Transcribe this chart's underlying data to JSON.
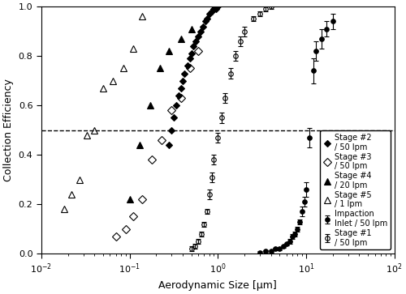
{
  "xlabel": "Aerodynamic Size [μm]",
  "ylabel": "Collection Efficiency",
  "xlim": [
    0.01,
    100
  ],
  "ylim": [
    0.0,
    1.0
  ],
  "dashed_line_y": 0.5,
  "impaction": {
    "label": "Impaction\nInlet / 50 lpm",
    "marker": "o",
    "fillstyle": "full",
    "x": [
      3.0,
      3.5,
      4.0,
      4.5,
      5.0,
      5.5,
      6.0,
      6.5,
      7.0,
      7.5,
      8.0,
      8.5,
      9.0,
      9.5,
      10.0,
      11.0,
      12.0,
      13.0,
      15.0,
      17.0,
      20.0
    ],
    "y": [
      0.005,
      0.01,
      0.01,
      0.02,
      0.02,
      0.03,
      0.04,
      0.05,
      0.07,
      0.08,
      0.1,
      0.13,
      0.17,
      0.21,
      0.26,
      0.47,
      0.74,
      0.82,
      0.87,
      0.91,
      0.94
    ],
    "yerr": [
      0.005,
      0.005,
      0.005,
      0.005,
      0.005,
      0.005,
      0.005,
      0.01,
      0.01,
      0.01,
      0.01,
      0.01,
      0.02,
      0.02,
      0.03,
      0.04,
      0.05,
      0.04,
      0.04,
      0.03,
      0.03
    ]
  },
  "stage1": {
    "label": "Stage #1\n/ 50 lpm",
    "marker": "o",
    "fillstyle": "none",
    "x": [
      0.5,
      0.55,
      0.6,
      0.65,
      0.7,
      0.75,
      0.8,
      0.85,
      0.9,
      1.0,
      1.1,
      1.2,
      1.4,
      1.6,
      1.8,
      2.0,
      2.5,
      3.0,
      3.5,
      4.0
    ],
    "y": [
      0.02,
      0.03,
      0.05,
      0.08,
      0.12,
      0.17,
      0.24,
      0.31,
      0.38,
      0.47,
      0.55,
      0.63,
      0.73,
      0.8,
      0.86,
      0.9,
      0.95,
      0.97,
      0.99,
      1.0
    ],
    "yerr": [
      0.01,
      0.01,
      0.01,
      0.01,
      0.01,
      0.01,
      0.02,
      0.02,
      0.02,
      0.02,
      0.02,
      0.02,
      0.02,
      0.02,
      0.02,
      0.02,
      0.01,
      0.01,
      0.01,
      0.01
    ]
  },
  "stage2": {
    "label": "Stage #2\n/ 50 lpm",
    "marker": "D",
    "fillstyle": "full",
    "x": [
      0.28,
      0.3,
      0.32,
      0.34,
      0.36,
      0.38,
      0.4,
      0.42,
      0.45,
      0.48,
      0.5,
      0.53,
      0.56,
      0.6,
      0.64,
      0.68,
      0.72,
      0.76,
      0.8,
      0.85,
      0.9,
      0.95,
      1.0
    ],
    "y": [
      0.44,
      0.5,
      0.55,
      0.6,
      0.64,
      0.67,
      0.7,
      0.73,
      0.76,
      0.79,
      0.81,
      0.84,
      0.86,
      0.88,
      0.9,
      0.92,
      0.94,
      0.95,
      0.97,
      0.98,
      0.99,
      0.99,
      1.0
    ],
    "yerr": null
  },
  "stage3": {
    "label": "Stage #3\n/ 50 lpm",
    "marker": "D",
    "fillstyle": "none",
    "x": [
      0.07,
      0.09,
      0.11,
      0.14,
      0.18,
      0.23,
      0.3,
      0.38,
      0.48,
      0.6
    ],
    "y": [
      0.07,
      0.1,
      0.15,
      0.22,
      0.38,
      0.46,
      0.58,
      0.63,
      0.75,
      0.82
    ],
    "yerr": null
  },
  "stage4": {
    "label": "Stage #4\n/ 20 lpm",
    "marker": "^",
    "fillstyle": "full",
    "x": [
      0.1,
      0.13,
      0.17,
      0.22,
      0.28,
      0.38,
      0.5
    ],
    "y": [
      0.22,
      0.44,
      0.6,
      0.75,
      0.82,
      0.87,
      0.91
    ],
    "yerr": null
  },
  "stage5": {
    "label": "Stage #5\n/ 1 lpm",
    "marker": "^",
    "fillstyle": "none",
    "x": [
      0.018,
      0.022,
      0.027,
      0.033,
      0.04,
      0.05,
      0.065,
      0.085,
      0.11,
      0.14
    ],
    "y": [
      0.18,
      0.24,
      0.3,
      0.48,
      0.5,
      0.67,
      0.7,
      0.75,
      0.83,
      0.96
    ],
    "yerr": null
  }
}
